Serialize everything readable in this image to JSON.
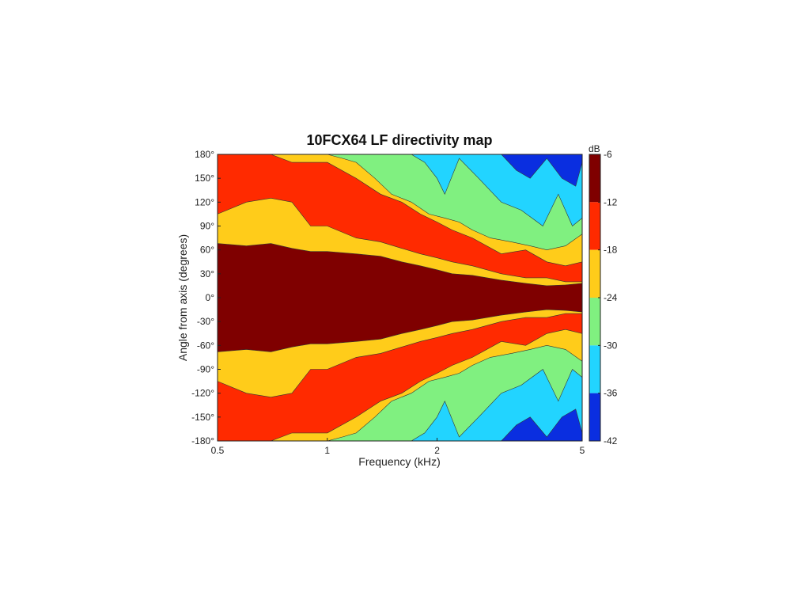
{
  "chart_data": {
    "type": "heatmap",
    "title": "10FCX64 LF directivity map",
    "xlabel": "Frequency (kHz)",
    "ylabel": "Angle from axis (degrees)",
    "x_scale": "log",
    "xlim": [
      0.5,
      5
    ],
    "ylim": [
      -180,
      180
    ],
    "x_ticks": [
      {
        "value": 0.5,
        "label": "0.5"
      },
      {
        "value": 1,
        "label": "1"
      },
      {
        "value": 2,
        "label": "2"
      },
      {
        "value": 5,
        "label": "5"
      }
    ],
    "y_ticks": [
      {
        "value": 180,
        "label": "180°"
      },
      {
        "value": 150,
        "label": "150°"
      },
      {
        "value": 120,
        "label": "120°"
      },
      {
        "value": 90,
        "label": "90°"
      },
      {
        "value": 60,
        "label": "60°"
      },
      {
        "value": 30,
        "label": "30°"
      },
      {
        "value": 0,
        "label": "0°"
      },
      {
        "value": -30,
        "label": "-30°"
      },
      {
        "value": -60,
        "label": "-60°"
      },
      {
        "value": -90,
        "label": "-90°"
      },
      {
        "value": -120,
        "label": "-120°"
      },
      {
        "value": -150,
        "label": "-150°"
      },
      {
        "value": -180,
        "label": "-180°"
      }
    ],
    "colorbar": {
      "unit_label": "dB",
      "range": [
        -42,
        -6
      ],
      "ticks": [
        {
          "value": -6,
          "label": "-6"
        },
        {
          "value": -12,
          "label": "-12"
        },
        {
          "value": -18,
          "label": "-18"
        },
        {
          "value": -24,
          "label": "-24"
        },
        {
          "value": -30,
          "label": "-30"
        },
        {
          "value": -36,
          "label": "-36"
        },
        {
          "value": -42,
          "label": "-42"
        }
      ]
    },
    "levels": [
      {
        "min_db": -12,
        "color": "#7f0000"
      },
      {
        "min_db": -18,
        "color": "#ff2a00"
      },
      {
        "min_db": -24,
        "color": "#ffcc1a"
      },
      {
        "min_db": -30,
        "color": "#80f080"
      },
      {
        "min_db": -36,
        "color": "#22d4ff"
      },
      {
        "min_db": -42,
        "color": "#0a2ee0"
      }
    ],
    "background_color": "#ffcc1a",
    "contours_abs_angle_deg": [
      {
        "level_db": -12,
        "color": "#ff2a00",
        "freq_khz": [
          0.5,
          0.6,
          0.7,
          0.8,
          0.9,
          1.0,
          1.2,
          1.4,
          1.6,
          1.8,
          2.0,
          2.2,
          2.5,
          3.0,
          3.5,
          4.0,
          4.5,
          5.0
        ],
        "angle_deg": [
          180,
          180,
          180,
          170,
          170,
          170,
          150,
          130,
          120,
          105,
          95,
          85,
          75,
          55,
          60,
          45,
          40,
          45
        ]
      },
      {
        "level_db": -18,
        "color": "#ffcc1a",
        "freq_khz": [
          0.5,
          0.6,
          0.7,
          0.8,
          0.9,
          1.0,
          1.2,
          1.4,
          1.6,
          1.8,
          2.0,
          2.2,
          2.5,
          3.0,
          3.5,
          4.0,
          4.5,
          5.0
        ],
        "angle_deg": [
          105,
          120,
          125,
          120,
          90,
          90,
          75,
          70,
          62,
          55,
          50,
          45,
          40,
          30,
          25,
          25,
          20,
          20
        ]
      },
      {
        "level_db": -6,
        "color": "#7f0000",
        "freq_khz": [
          0.5,
          0.6,
          0.7,
          0.8,
          0.9,
          1.0,
          1.2,
          1.4,
          1.6,
          1.8,
          2.0,
          2.2,
          2.5,
          3.0,
          3.5,
          4.0,
          4.5,
          5.0
        ],
        "angle_deg": [
          68,
          65,
          68,
          62,
          58,
          58,
          55,
          52,
          45,
          40,
          35,
          30,
          28,
          22,
          18,
          15,
          16,
          18
        ]
      },
      {
        "level_db": -24,
        "color": "#80f080",
        "freq_khz": [
          0.5,
          0.75,
          0.85,
          0.92,
          1.0,
          1.1,
          1.2,
          1.35,
          1.5,
          1.7,
          1.9,
          2.1,
          2.3,
          2.5,
          2.8,
          3.2,
          3.6,
          4.0,
          4.5,
          5.0
        ],
        "angle_deg": [
          180,
          180,
          180,
          180,
          180,
          175,
          170,
          150,
          130,
          120,
          105,
          100,
          95,
          85,
          75,
          70,
          65,
          60,
          65,
          80
        ]
      },
      {
        "level_db": -30,
        "color": "#22d4ff",
        "freq_khz": [
          0.5,
          1.5,
          1.7,
          1.85,
          2.0,
          2.1,
          2.3,
          2.6,
          3.0,
          3.4,
          3.9,
          4.3,
          4.7,
          5.0
        ],
        "angle_deg": [
          180,
          180,
          180,
          170,
          150,
          130,
          175,
          150,
          120,
          110,
          90,
          130,
          90,
          100
        ]
      },
      {
        "level_db": -36,
        "color": "#0a2ee0",
        "freq_khz": [
          0.5,
          3.0,
          3.3,
          3.6,
          4.0,
          4.4,
          4.8,
          5.0
        ],
        "angle_deg": [
          180,
          180,
          160,
          150,
          175,
          150,
          140,
          170
        ]
      }
    ]
  }
}
